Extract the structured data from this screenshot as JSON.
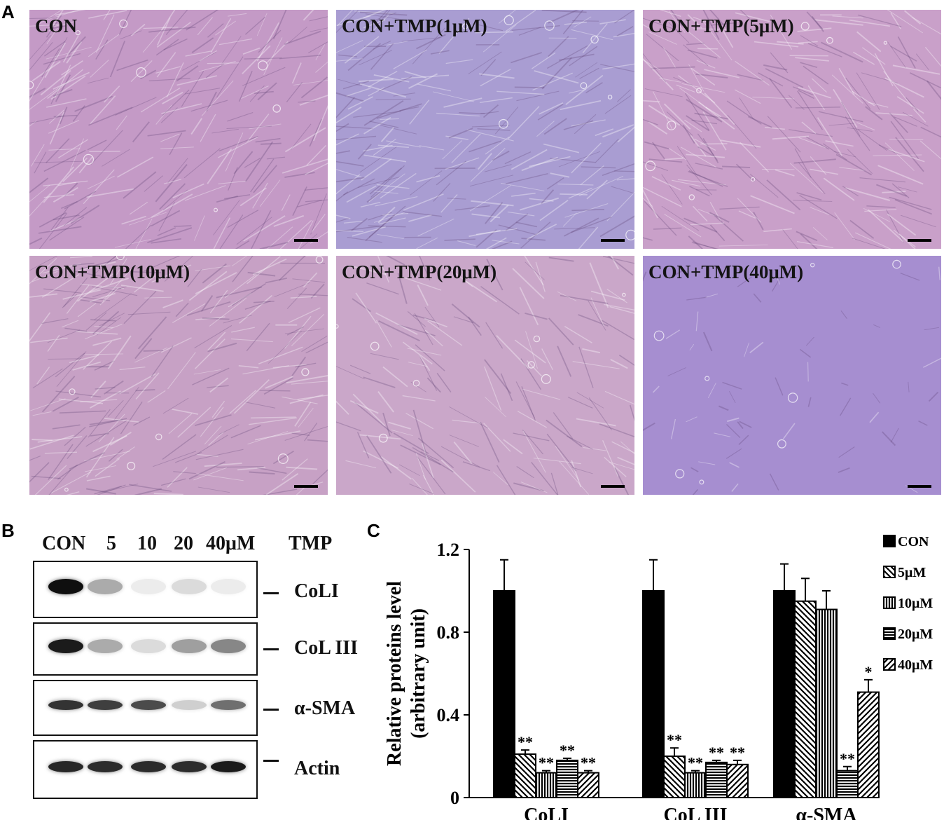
{
  "panels": {
    "a": "A",
    "b": "B",
    "c": "C"
  },
  "micrographs": [
    {
      "label": "CON",
      "color": "#c49ac6"
    },
    {
      "label": "CON+TMP(1μM)",
      "color": "#a99dd2"
    },
    {
      "label": "CON+TMP(5μM)",
      "color": "#c9a0c9"
    },
    {
      "label": "CON+TMP(10μM)",
      "color": "#c7a1c5"
    },
    {
      "label": "CON+TMP(20μM)",
      "color": "#caa7c9"
    },
    {
      "label": "CON+TMP(40μM)",
      "color": "#a68ed0"
    }
  ],
  "western_blot": {
    "lanes": [
      "CON",
      "5",
      "10",
      "20",
      "40μM"
    ],
    "treatment": "TMP",
    "proteins": [
      "CoLI",
      "CoL III",
      "α-SMA",
      "Actin"
    ],
    "band_intensity": [
      [
        1.0,
        0.35,
        0.08,
        0.15,
        0.08
      ],
      [
        0.95,
        0.35,
        0.15,
        0.4,
        0.5
      ],
      [
        0.85,
        0.8,
        0.75,
        0.2,
        0.6
      ],
      [
        0.9,
        0.88,
        0.88,
        0.88,
        0.95
      ]
    ]
  },
  "chart_data": {
    "type": "bar",
    "categories": [
      "CoLI",
      "CoL III",
      "α-SMA"
    ],
    "ylabel": "Relative proteins level (arbitrary unit)",
    "ylim": [
      0,
      1.2
    ],
    "yticks": [
      "0",
      "0.4",
      "0.8",
      "1.2"
    ],
    "series": [
      {
        "name": "CON",
        "values": [
          1.0,
          1.0,
          1.0
        ],
        "errors": [
          0.15,
          0.15,
          0.13
        ],
        "pattern": "solid",
        "sig": [
          "",
          "",
          ""
        ]
      },
      {
        "name": "5μM",
        "values": [
          0.21,
          0.2,
          0.95
        ],
        "errors": [
          0.02,
          0.04,
          0.11
        ],
        "pattern": "diag-back",
        "sig": [
          "**",
          "**",
          ""
        ]
      },
      {
        "name": "10μM",
        "values": [
          0.12,
          0.12,
          0.91
        ],
        "errors": [
          0.01,
          0.01,
          0.09
        ],
        "pattern": "vertical",
        "sig": [
          "**",
          "**",
          ""
        ]
      },
      {
        "name": "20μM",
        "values": [
          0.18,
          0.17,
          0.13
        ],
        "errors": [
          0.01,
          0.01,
          0.02
        ],
        "pattern": "horizontal",
        "sig": [
          "**",
          "**",
          "**"
        ]
      },
      {
        "name": "40μM",
        "values": [
          0.12,
          0.16,
          0.51
        ],
        "errors": [
          0.01,
          0.02,
          0.06
        ],
        "pattern": "diag-fwd",
        "sig": [
          "**",
          "**",
          "*"
        ]
      }
    ],
    "legend_position": "right",
    "grid": false
  }
}
